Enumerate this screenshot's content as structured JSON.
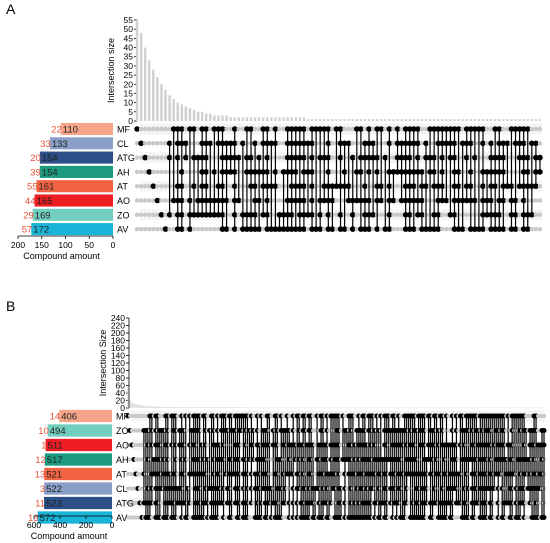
{
  "chart_data": [
    {
      "type": "upset",
      "panel_label": "A",
      "ylabel": "Intersection size",
      "xlabel": "Compound amount",
      "yticks": [
        0,
        5,
        10,
        15,
        20,
        25,
        30,
        35,
        40,
        45,
        50,
        55
      ],
      "ylim": [
        0,
        55
      ],
      "xticks": [
        200,
        150,
        100,
        50,
        0
      ],
      "xlim": [
        200,
        0
      ],
      "sets": [
        {
          "name": "MF",
          "total": 110,
          "unique": 22,
          "color": "#f4a58a"
        },
        {
          "name": "CL",
          "total": 133,
          "unique": 33,
          "color": "#8a9fc8"
        },
        {
          "name": "ATG",
          "total": 154,
          "unique": 20,
          "color": "#2c4f88"
        },
        {
          "name": "AH",
          "total": 154,
          "unique": 39,
          "color": "#1c9a80"
        },
        {
          "name": "AT",
          "total": 161,
          "unique": 55,
          "color": "#f26344"
        },
        {
          "name": "AO",
          "total": 165,
          "unique": 44,
          "color": "#ee1d23"
        },
        {
          "name": "ZO",
          "total": 169,
          "unique": 29,
          "color": "#72cfbf"
        },
        {
          "name": "AV",
          "total": 172,
          "unique": 57,
          "color": "#1ab4d8"
        }
      ],
      "intersection_sizes": [
        55,
        48,
        40,
        33,
        28,
        24,
        20,
        17,
        14,
        12,
        10,
        9,
        8,
        7,
        6,
        5,
        5,
        4,
        4,
        3,
        3,
        3,
        3,
        2,
        2,
        2,
        2,
        2,
        2,
        2,
        2,
        2,
        2,
        2,
        2,
        2,
        2,
        2,
        2,
        2,
        2,
        2,
        1,
        1,
        1,
        1,
        1,
        1,
        1,
        1,
        1,
        1,
        1,
        1,
        1,
        1,
        1,
        1,
        1,
        1,
        1,
        1,
        1,
        1,
        1,
        1,
        1,
        1,
        1,
        1,
        1,
        1,
        1,
        1,
        1,
        1,
        1,
        1,
        1,
        1,
        1,
        1,
        1,
        1,
        1,
        1,
        1,
        1,
        1,
        1,
        1,
        1,
        1,
        1,
        1,
        1,
        1,
        1,
        1,
        1
      ]
    },
    {
      "type": "upset",
      "panel_label": "B",
      "ylabel": "Intersection Size",
      "xlabel": "Compound amount",
      "yticks": [
        0,
        20,
        40,
        60,
        80,
        100,
        120,
        140,
        160,
        180,
        200,
        220,
        240
      ],
      "ylim": [
        0,
        240
      ],
      "xticks": [
        600,
        400,
        200,
        0
      ],
      "xlim": [
        600,
        0
      ],
      "sets": [
        {
          "name": "MF",
          "total": 406,
          "unique": 14,
          "color": "#f4a58a"
        },
        {
          "name": "ZO",
          "total": 494,
          "unique": 10,
          "color": "#72cfbf"
        },
        {
          "name": "AO",
          "total": 511,
          "unique": 1,
          "color": "#ee1d23"
        },
        {
          "name": "AH",
          "total": 517,
          "unique": 12,
          "color": "#1c9a80"
        },
        {
          "name": "AT",
          "total": 521,
          "unique": 13,
          "color": "#f26344"
        },
        {
          "name": "CL",
          "total": 522,
          "unique": 3,
          "color": "#8a9fc8"
        },
        {
          "name": "ATG",
          "total": 523,
          "unique": 11,
          "color": "#2c4f88"
        },
        {
          "name": "AV",
          "total": 572,
          "unique": 13,
          "color": "#1ab4d8"
        }
      ],
      "intersection_sizes": [
        55,
        22,
        15,
        12,
        10,
        9,
        8,
        7,
        6,
        6,
        5,
        5,
        5,
        4,
        4,
        4,
        4,
        3,
        3,
        3,
        3,
        3,
        3,
        3,
        3,
        2,
        2,
        2,
        2,
        2,
        2,
        2,
        2,
        2,
        2,
        2,
        2,
        2,
        2,
        2,
        2,
        2,
        2,
        2,
        2,
        2,
        2,
        2,
        2,
        2,
        2,
        2,
        2,
        2,
        2,
        2,
        2,
        2,
        2,
        2,
        1,
        1,
        1,
        1,
        1,
        1,
        1,
        1,
        1,
        1,
        1,
        1,
        1,
        1,
        1,
        1,
        1,
        1,
        1,
        1,
        1,
        1,
        1,
        1,
        1,
        1,
        1,
        1,
        1,
        1,
        1,
        1,
        1,
        1,
        1,
        1,
        1,
        1,
        1,
        1,
        1,
        1,
        1,
        1,
        1,
        1,
        1,
        1,
        1,
        1,
        1,
        1,
        1,
        1,
        1,
        1,
        1,
        1,
        1,
        1,
        1,
        1,
        1,
        1,
        1,
        1,
        1,
        1,
        1,
        1,
        1,
        1,
        1,
        1,
        1,
        1,
        1,
        1,
        1,
        1,
        1,
        1,
        1,
        1,
        1,
        1,
        1,
        1,
        1,
        1,
        1,
        1,
        1,
        1,
        1,
        1,
        1,
        1,
        1,
        1,
        1,
        1,
        1,
        1,
        1,
        1,
        1,
        1,
        1,
        1,
        1,
        1,
        1,
        1,
        1,
        1,
        1,
        1,
        1,
        1,
        1,
        1,
        1,
        1,
        1,
        1,
        1,
        1,
        1,
        1,
        1,
        1,
        1,
        1,
        1,
        1,
        1,
        1,
        1,
        1,
        1,
        1,
        1,
        1,
        1,
        1,
        1,
        1,
        1,
        1
      ]
    }
  ],
  "colors": {
    "bar": "#d0d0d0",
    "dot_active": "#000000",
    "dot_inactive": "#c9c9c9",
    "unique_label": "#e8513a",
    "axis": "#000000"
  }
}
